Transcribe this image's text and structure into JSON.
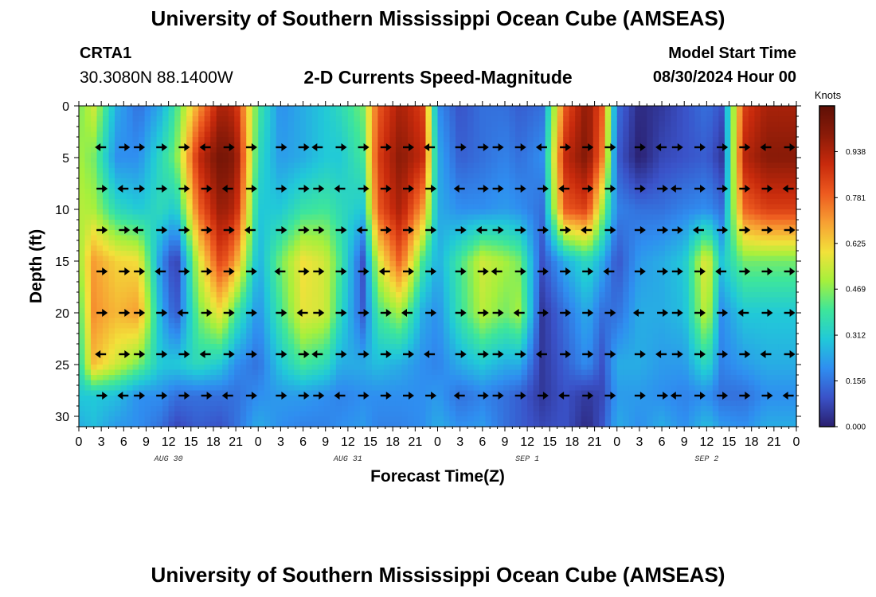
{
  "header": {
    "title": "University of Southern Mississippi Ocean Cube (AMSEAS)",
    "station_id": "CRTA1",
    "coordinates": "30.3080N  88.1400W",
    "subtitle": "2-D Currents Speed-Magnitude",
    "model_start_label": "Model Start Time",
    "model_start_value": "08/30/2024 Hour 00"
  },
  "footer": {
    "title": "University of Southern Mississippi Ocean Cube (AMSEAS)"
  },
  "chart_data": {
    "type": "heatmap",
    "title": "2-D Currents Speed-Magnitude",
    "xlabel": "Forecast Time(Z)",
    "ylabel": "Depth (ft)",
    "x_hours": [
      0,
      96
    ],
    "xtick_labels": [
      "0",
      "3",
      "6",
      "9",
      "12",
      "15",
      "18",
      "21",
      "0",
      "3",
      "6",
      "9",
      "12",
      "15",
      "18",
      "21",
      "0",
      "3",
      "6",
      "9",
      "12",
      "15",
      "18",
      "21",
      "0",
      "3",
      "6",
      "9",
      "12",
      "15",
      "18",
      "21",
      "0"
    ],
    "date_labels": [
      {
        "label": "AUG 30",
        "hour": 12
      },
      {
        "label": "AUG 31",
        "hour": 36
      },
      {
        "label": "SEP 1",
        "hour": 60
      },
      {
        "label": "SEP 2",
        "hour": 84
      }
    ],
    "ylim": [
      0,
      31
    ],
    "yticks": [
      0,
      5,
      10,
      15,
      20,
      25,
      30
    ],
    "colorbar": {
      "label": "Knots",
      "min": 0.0,
      "max": 1.094,
      "ticks": [
        "0.000",
        "0.156",
        "0.312",
        "0.469",
        "0.625",
        "0.781",
        "0.938"
      ],
      "colors": [
        "#2a1f6e",
        "#3a52c8",
        "#2f8ef0",
        "#21c9d8",
        "#3ee69a",
        "#a6f03c",
        "#f2e13a",
        "#f7a033",
        "#ed5a1f",
        "#c82a0c",
        "#8b1b08",
        "#5e0f06"
      ]
    },
    "vector_depths_ft": [
      4,
      8,
      12,
      16,
      20,
      24,
      28
    ],
    "vector_hours": [
      3,
      6,
      8,
      11,
      14,
      17,
      20,
      23,
      27,
      30,
      32,
      35,
      38,
      41,
      44,
      47,
      51,
      54,
      56,
      59,
      62,
      65,
      68,
      71,
      75,
      78,
      80,
      83,
      86,
      89,
      92,
      95
    ],
    "columns": [
      {
        "hour": 0,
        "speeds": [
          0.45,
          0.5,
          0.52,
          0.48,
          0.4,
          0.35,
          0.3,
          0.25
        ]
      },
      {
        "hour": 2,
        "speeds": [
          0.55,
          0.45,
          0.5,
          0.7,
          0.72,
          0.65,
          0.3,
          0.28
        ]
      },
      {
        "hour": 5,
        "speeds": [
          0.25,
          0.2,
          0.35,
          0.62,
          0.66,
          0.55,
          0.28,
          0.22
        ]
      },
      {
        "hour": 8,
        "speeds": [
          0.15,
          0.2,
          0.3,
          0.6,
          0.7,
          0.45,
          0.2,
          0.2
        ]
      },
      {
        "hour": 11,
        "speeds": [
          0.25,
          0.35,
          0.35,
          0.2,
          0.25,
          0.3,
          0.2,
          0.15
        ]
      },
      {
        "hour": 13,
        "speeds": [
          0.4,
          0.45,
          0.3,
          0.05,
          0.1,
          0.3,
          0.15,
          0.08
        ]
      },
      {
        "hour": 16,
        "speeds": [
          0.7,
          0.9,
          0.78,
          0.55,
          0.45,
          0.35,
          0.15,
          0.12
        ]
      },
      {
        "hour": 19,
        "speeds": [
          0.95,
          1.05,
          0.98,
          0.85,
          0.6,
          0.3,
          0.15,
          0.1
        ]
      },
      {
        "hour": 21,
        "speeds": [
          0.9,
          1.0,
          0.92,
          0.7,
          0.4,
          0.2,
          0.15,
          0.15
        ]
      },
      {
        "hour": 24,
        "speeds": [
          0.4,
          0.35,
          0.3,
          0.25,
          0.2,
          0.15,
          0.2,
          0.25
        ]
      },
      {
        "hour": 27,
        "speeds": [
          0.2,
          0.22,
          0.3,
          0.45,
          0.4,
          0.3,
          0.22,
          0.2
        ]
      },
      {
        "hour": 30,
        "speeds": [
          0.25,
          0.25,
          0.38,
          0.6,
          0.58,
          0.4,
          0.22,
          0.18
        ]
      },
      {
        "hour": 33,
        "speeds": [
          0.3,
          0.3,
          0.4,
          0.55,
          0.55,
          0.35,
          0.2,
          0.18
        ]
      },
      {
        "hour": 35,
        "speeds": [
          0.35,
          0.3,
          0.35,
          0.4,
          0.35,
          0.25,
          0.18,
          0.2
        ]
      },
      {
        "hour": 38,
        "speeds": [
          0.45,
          0.4,
          0.3,
          0.1,
          0.12,
          0.25,
          0.2,
          0.22
        ]
      },
      {
        "hour": 40,
        "speeds": [
          0.8,
          0.85,
          0.8,
          0.55,
          0.4,
          0.28,
          0.2,
          0.18
        ]
      },
      {
        "hour": 43,
        "speeds": [
          0.95,
          1.0,
          0.95,
          0.8,
          0.5,
          0.25,
          0.2,
          0.18
        ]
      },
      {
        "hour": 46,
        "speeds": [
          0.85,
          0.9,
          0.7,
          0.4,
          0.25,
          0.2,
          0.2,
          0.2
        ]
      },
      {
        "hour": 48,
        "speeds": [
          0.2,
          0.25,
          0.25,
          0.25,
          0.2,
          0.18,
          0.22,
          0.25
        ]
      },
      {
        "hour": 51,
        "speeds": [
          0.1,
          0.12,
          0.2,
          0.4,
          0.38,
          0.25,
          0.15,
          0.2
        ]
      },
      {
        "hour": 54,
        "speeds": [
          0.15,
          0.15,
          0.2,
          0.55,
          0.52,
          0.3,
          0.18,
          0.22
        ]
      },
      {
        "hour": 57,
        "speeds": [
          0.15,
          0.18,
          0.22,
          0.5,
          0.45,
          0.25,
          0.15,
          0.15
        ]
      },
      {
        "hour": 59,
        "speeds": [
          0.12,
          0.15,
          0.2,
          0.45,
          0.5,
          0.25,
          0.12,
          0.12
        ]
      },
      {
        "hour": 62,
        "speeds": [
          0.15,
          0.2,
          0.15,
          0.1,
          0.05,
          0.05,
          0.05,
          0.08
        ]
      },
      {
        "hour": 65,
        "speeds": [
          0.8,
          0.9,
          0.8,
          0.25,
          0.15,
          0.12,
          0.1,
          0.1
        ]
      },
      {
        "hour": 68,
        "speeds": [
          1.0,
          1.02,
          0.85,
          0.35,
          0.25,
          0.2,
          0.05,
          0.02
        ]
      },
      {
        "hour": 70,
        "speeds": [
          0.8,
          0.75,
          0.5,
          0.25,
          0.15,
          0.1,
          0.08,
          0.1
        ]
      },
      {
        "hour": 72,
        "speeds": [
          0.15,
          0.12,
          0.18,
          0.1,
          0.15,
          0.25,
          0.22,
          0.25
        ]
      },
      {
        "hour": 75,
        "speeds": [
          0.02,
          0.0,
          0.15,
          0.22,
          0.25,
          0.25,
          0.22,
          0.2
        ]
      },
      {
        "hour": 78,
        "speeds": [
          0.05,
          0.08,
          0.15,
          0.25,
          0.25,
          0.22,
          0.2,
          0.25
        ]
      },
      {
        "hour": 81,
        "speeds": [
          0.1,
          0.1,
          0.18,
          0.3,
          0.28,
          0.22,
          0.18,
          0.2
        ]
      },
      {
        "hour": 84,
        "speeds": [
          0.15,
          0.12,
          0.2,
          0.6,
          0.55,
          0.35,
          0.2,
          0.28
        ]
      },
      {
        "hour": 86,
        "speeds": [
          0.1,
          0.05,
          0.15,
          0.3,
          0.2,
          0.18,
          0.15,
          0.22
        ]
      },
      {
        "hour": 89,
        "speeds": [
          0.85,
          0.92,
          0.78,
          0.45,
          0.3,
          0.22,
          0.15,
          0.2
        ]
      },
      {
        "hour": 92,
        "speeds": [
          0.95,
          1.0,
          0.85,
          0.45,
          0.3,
          0.25,
          0.2,
          0.25
        ]
      },
      {
        "hour": 96,
        "speeds": [
          0.95,
          1.0,
          0.85,
          0.45,
          0.3,
          0.25,
          0.2,
          0.25
        ]
      }
    ],
    "column_depths_ft": [
      0,
      5,
      10,
      15,
      20,
      25,
      28,
      31
    ]
  }
}
